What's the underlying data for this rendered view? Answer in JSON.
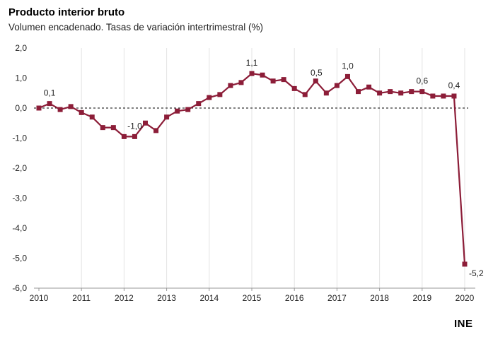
{
  "header": {
    "title": "Producto interior bruto",
    "subtitle": "Volumen encadenado. Tasas de variación intertrimestral (%)"
  },
  "footer": {
    "logo_text": "INE"
  },
  "colors": {
    "series": "#8c1d38",
    "zero_line": "#000000",
    "grid": "#e3e3e3"
  },
  "chart_data": {
    "type": "line",
    "title": "Producto interior bruto",
    "subtitle": "Volumen encadenado. Tasas de variación intertrimestral (%)",
    "ylim": [
      -6.0,
      2.0
    ],
    "xlim": [
      2010,
      2020
    ],
    "y_ticks": [
      "2,0",
      "1,0",
      "0,0",
      "-1,0",
      "-2,0",
      "-3,0",
      "-4,0",
      "-5,0",
      "-6,0"
    ],
    "y_tick_values": [
      2,
      1,
      0,
      -1,
      -2,
      -3,
      -4,
      -5,
      -6
    ],
    "x_ticks": [
      "2010",
      "2011",
      "2012",
      "2013",
      "2014",
      "2015",
      "2016",
      "2017",
      "2018",
      "2019",
      "2020"
    ],
    "x_tick_values": [
      2010,
      2011,
      2012,
      2013,
      2014,
      2015,
      2016,
      2017,
      2018,
      2019,
      2020
    ],
    "grid": "vertical",
    "reference_line": {
      "y": 0,
      "style": "dashed"
    },
    "marker": "square",
    "series": [
      {
        "x": [
          2010.0,
          2010.25,
          2010.5,
          2010.75,
          2011.0,
          2011.25,
          2011.5,
          2011.75,
          2012.0,
          2012.25,
          2012.5,
          2012.75,
          2013.0,
          2013.25,
          2013.5,
          2013.75,
          2014.0,
          2014.25,
          2014.5,
          2014.75,
          2015.0,
          2015.25,
          2015.5,
          2015.75,
          2016.0,
          2016.25,
          2016.5,
          2016.75,
          2017.0,
          2017.25,
          2017.5,
          2017.75,
          2018.0,
          2018.25,
          2018.5,
          2018.75,
          2019.0,
          2019.25,
          2019.5,
          2019.75,
          2020.0
        ],
        "values": [
          0.0,
          0.15,
          -0.05,
          0.05,
          -0.15,
          -0.3,
          -0.65,
          -0.65,
          -0.95,
          -0.95,
          -0.5,
          -0.75,
          -0.3,
          -0.1,
          -0.05,
          0.15,
          0.35,
          0.45,
          0.75,
          0.85,
          1.15,
          1.1,
          0.9,
          0.95,
          0.65,
          0.45,
          0.9,
          0.5,
          0.75,
          1.05,
          0.55,
          0.7,
          0.5,
          0.55,
          0.5,
          0.55,
          0.55,
          0.4,
          0.4,
          0.4,
          -5.2
        ]
      }
    ],
    "annotations": [
      {
        "text": "0,1",
        "x": 2010.25,
        "y": 0.15,
        "pos": "above"
      },
      {
        "text": "-1,0",
        "x": 2012.25,
        "y": -0.95,
        "pos": "above"
      },
      {
        "text": "1,1",
        "x": 2015.0,
        "y": 1.15,
        "pos": "above"
      },
      {
        "text": "0,5",
        "x": 2016.75,
        "y": 0.9,
        "pos": "right"
      },
      {
        "text": "1,0",
        "x": 2017.25,
        "y": 1.05,
        "pos": "above"
      },
      {
        "text": "0,6",
        "x": 2019.0,
        "y": 0.55,
        "pos": "above"
      },
      {
        "text": "0,4",
        "x": 2019.75,
        "y": 0.4,
        "pos": "above"
      },
      {
        "text": "-5,2",
        "x": 2020.0,
        "y": -5.2,
        "pos": "below-right"
      }
    ]
  }
}
